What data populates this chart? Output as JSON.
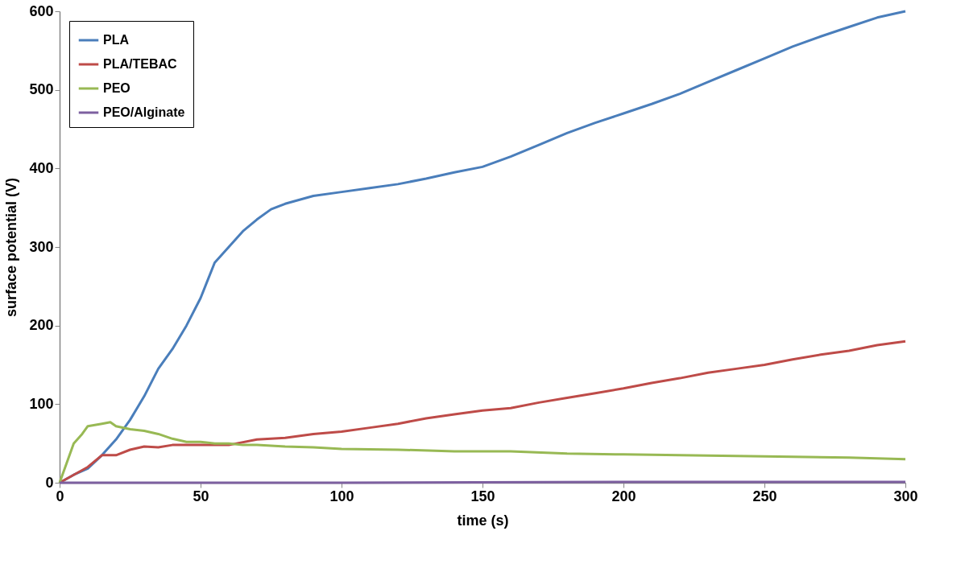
{
  "chart_data": {
    "type": "line",
    "xlabel": "time (s)",
    "ylabel": "surface potential (V)",
    "xlim": [
      0,
      300
    ],
    "ylim": [
      0,
      600
    ],
    "xticks": [
      0,
      50,
      100,
      150,
      200,
      250,
      300
    ],
    "yticks": [
      0,
      100,
      200,
      300,
      400,
      500,
      600
    ],
    "grid": false,
    "legend": "top left",
    "marker": "none",
    "line_style": "solid",
    "series": [
      {
        "name": "PLA",
        "color": "#4a7ebb",
        "x": [
          0,
          5,
          10,
          15,
          20,
          25,
          30,
          35,
          40,
          45,
          50,
          55,
          60,
          65,
          70,
          75,
          80,
          90,
          100,
          110,
          120,
          130,
          140,
          150,
          160,
          170,
          180,
          190,
          200,
          210,
          220,
          230,
          240,
          250,
          260,
          270,
          280,
          290,
          300
        ],
        "values": [
          0,
          10,
          18,
          35,
          55,
          80,
          110,
          145,
          170,
          200,
          235,
          280,
          300,
          320,
          335,
          348,
          355,
          365,
          370,
          375,
          380,
          387,
          395,
          402,
          415,
          430,
          445,
          458,
          470,
          482,
          495,
          510,
          525,
          540,
          555,
          568,
          580,
          592,
          600
        ]
      },
      {
        "name": "PLA/TEBAC",
        "color": "#be4b48",
        "x": [
          0,
          5,
          10,
          15,
          20,
          25,
          30,
          35,
          40,
          50,
          60,
          70,
          80,
          90,
          100,
          110,
          120,
          130,
          140,
          150,
          160,
          170,
          180,
          190,
          200,
          210,
          220,
          230,
          240,
          250,
          260,
          270,
          280,
          290,
          300
        ],
        "values": [
          0,
          10,
          20,
          35,
          35,
          42,
          46,
          45,
          48,
          48,
          48,
          55,
          57,
          62,
          65,
          70,
          75,
          82,
          87,
          92,
          95,
          102,
          108,
          114,
          120,
          127,
          133,
          140,
          145,
          150,
          157,
          163,
          168,
          175,
          180
        ]
      },
      {
        "name": "PEO",
        "color": "#98b954",
        "x": [
          0,
          3,
          5,
          8,
          10,
          15,
          18,
          20,
          25,
          30,
          35,
          40,
          45,
          50,
          55,
          60,
          65,
          70,
          80,
          90,
          100,
          120,
          140,
          160,
          180,
          200,
          220,
          240,
          260,
          280,
          300
        ],
        "values": [
          0,
          30,
          50,
          62,
          72,
          75,
          77,
          72,
          68,
          66,
          62,
          56,
          52,
          52,
          50,
          50,
          48,
          48,
          46,
          45,
          43,
          42,
          40,
          40,
          37,
          36,
          35,
          34,
          33,
          32,
          30
        ]
      },
      {
        "name": "PEO/Alginate",
        "color": "#7d60a0",
        "x": [
          0,
          100,
          200,
          300
        ],
        "values": [
          0,
          0,
          1,
          1
        ]
      }
    ]
  }
}
